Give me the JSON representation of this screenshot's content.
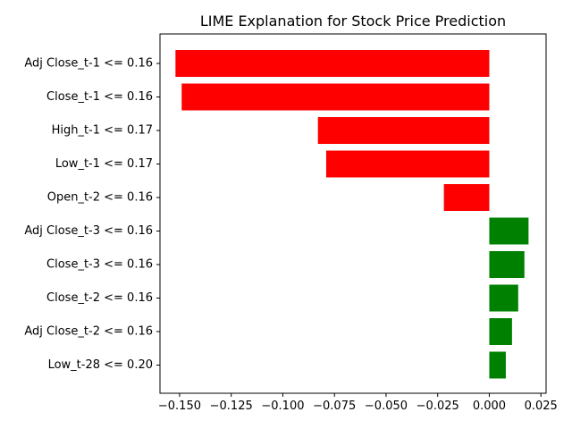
{
  "chart_data": {
    "type": "bar",
    "orientation": "horizontal",
    "title": "LIME Explanation for Stock Price Prediction",
    "xlabel": "",
    "ylabel": "",
    "categories": [
      "Adj Close_t-1 <= 0.16",
      "Close_t-1 <= 0.16",
      "High_t-1 <= 0.17",
      "Low_t-1 <= 0.17",
      "Open_t-2 <= 0.16",
      "Adj Close_t-3 <= 0.16",
      "Close_t-3 <= 0.16",
      "Close_t-2 <= 0.16",
      "Adj Close_t-2 <= 0.16",
      "Low_t-28 <= 0.20"
    ],
    "values": [
      -0.152,
      -0.149,
      -0.083,
      -0.079,
      -0.022,
      0.019,
      0.017,
      0.014,
      0.011,
      0.008
    ],
    "xlim": [
      -0.1595,
      0.0275
    ],
    "xticks": [
      -0.15,
      -0.125,
      -0.1,
      -0.075,
      -0.05,
      -0.025,
      0.0,
      0.025
    ],
    "xtick_labels": [
      "−0.150",
      "−0.125",
      "−0.100",
      "−0.075",
      "−0.050",
      "−0.025",
      "0.000",
      "0.025"
    ],
    "grid": false,
    "legend": "none",
    "colors": {
      "negative": "#ff0000",
      "positive": "#008000"
    }
  }
}
